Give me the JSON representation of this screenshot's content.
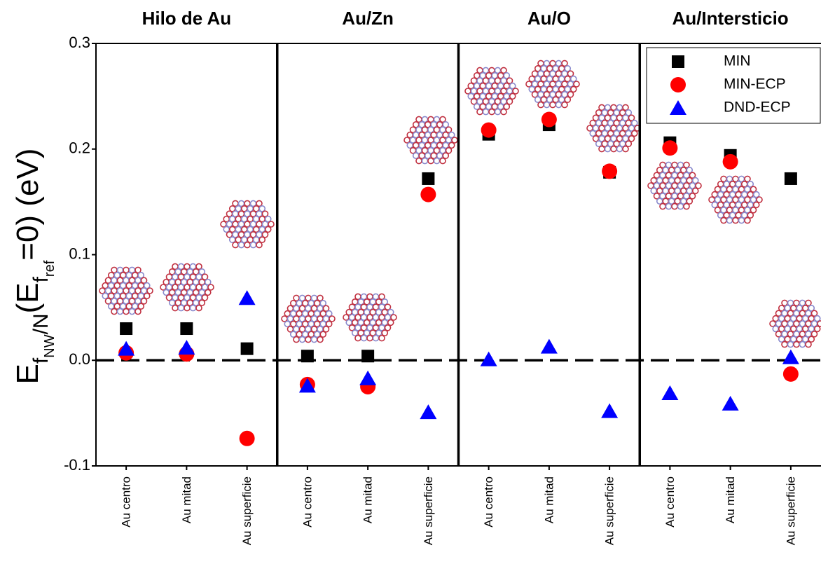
{
  "chart_data": {
    "type": "scatter",
    "group_labels": [
      "Hilo de Au",
      "Au/Zn",
      "Au/O",
      "Au/Intersticio"
    ],
    "y_label_parts": [
      "E",
      "f",
      "NW",
      "/N",
      "(E",
      "f",
      "ref",
      "=0) (eV)"
    ],
    "categories": [
      "Au centro",
      "Au mitad",
      "Au superficie",
      "Au centro",
      "Au mitad",
      "Au superficie",
      "Au centro",
      "Au mitad",
      "Au superficie",
      "Au centro",
      "Au mitad",
      "Au superficie"
    ],
    "series": [
      {
        "name": "MIN",
        "color": "#000000",
        "marker": "square",
        "values": [
          0.03,
          0.03,
          0.011,
          0.004,
          0.004,
          0.172,
          0.214,
          0.223,
          0.178,
          0.206,
          0.194,
          0.172
        ]
      },
      {
        "name": "MIN-ECP",
        "color": "#ff0000",
        "marker": "circle",
        "values": [
          0.007,
          0.006,
          -0.074,
          -0.023,
          -0.025,
          0.157,
          0.218,
          0.228,
          0.179,
          0.201,
          0.188,
          -0.013
        ]
      },
      {
        "name": "DND-ECP",
        "color": "#0000ff",
        "marker": "triangle",
        "values": [
          0.011,
          0.012,
          0.059,
          -0.024,
          -0.017,
          -0.049,
          0.001,
          0.013,
          -0.048,
          -0.031,
          -0.041,
          0.003
        ]
      }
    ],
    "ylim": [
      -0.1,
      0.3
    ],
    "yticks": [
      -0.1,
      {
        "value": 0,
        "label": "0.0"
      },
      0.1,
      0.2,
      0.3
    ],
    "reference_line": 0,
    "legend": "upper right"
  }
}
